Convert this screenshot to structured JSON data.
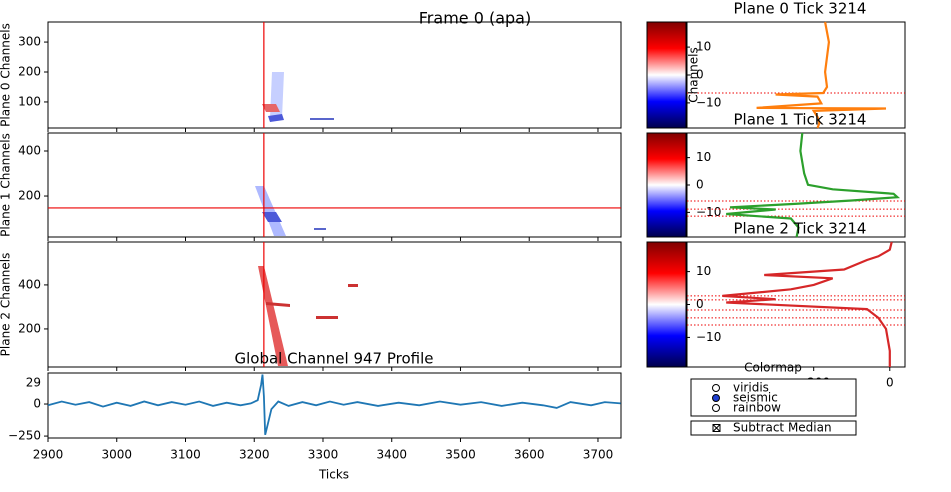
{
  "title": "Frame 0 (apa)",
  "time_axis": {
    "xlim": [
      2900,
      3733.5
    ],
    "xticks": [
      2900,
      3000,
      3100,
      3200,
      3300,
      3400,
      3500,
      3600,
      3700
    ],
    "xlabel": "Ticks",
    "cursor_tick": 3214
  },
  "colorbar": {
    "lim": [
      -19,
      19
    ],
    "ticks": [
      {
        "value": -10,
        "label": "−10"
      },
      0,
      10
    ]
  },
  "right_ylabel": "Channels",
  "right_xaxis": {
    "xlim": [
      -533,
      40
    ],
    "xticks": [
      {
        "value": -200,
        "label": "−200"
      },
      0
    ]
  },
  "planes": [
    {
      "ylabel": "Plane 0 Channels",
      "ylim": [
        13,
        367
      ],
      "yticks": [
        100,
        200,
        300
      ],
      "profile_title": "Plane 0 Tick 3214",
      "color": "#ff7f0e",
      "trace": {
        "channels": [
          367,
          300,
          250,
          200,
          150,
          130,
          125,
          118,
          95,
          80,
          78,
          70,
          50,
          30,
          13
        ],
        "values": [
          -170,
          -160,
          -165,
          -170,
          -165,
          -175,
          -300,
          -190,
          -180,
          -350,
          -10,
          -200,
          -190,
          -185,
          -190
        ]
      },
      "marker_channels": [
        130
      ]
    },
    {
      "ylabel": "Plane 1 Channels",
      "ylim": [
        18,
        480
      ],
      "yticks": [
        200,
        400
      ],
      "profile_title": "Plane 1 Tick 3214",
      "color": "#2ca02c",
      "trace": {
        "channels": [
          480,
          400,
          300,
          250,
          230,
          210,
          195,
          180,
          165,
          150,
          140,
          120,
          100,
          60,
          18
        ],
        "values": [
          -230,
          -235,
          -225,
          -215,
          -150,
          10,
          20,
          -100,
          -250,
          -420,
          -300,
          -430,
          -260,
          -240,
          -245
        ]
      },
      "marker_channels": [
        178,
        142,
        111
      ]
    },
    {
      "ylabel": "Plane 2 Channels",
      "ylim": [
        27,
        595
      ],
      "yticks": [
        200,
        400
      ],
      "profile_title": "Plane 2 Tick 3214",
      "color": "#d62728",
      "trace": {
        "channels": [
          595,
          560,
          530,
          513,
          470,
          445,
          430,
          400,
          380,
          350,
          335,
          320,
          290,
          250,
          200,
          100,
          27
        ],
        "values": [
          5,
          0,
          -30,
          -60,
          -120,
          -330,
          -150,
          -200,
          -260,
          -440,
          -300,
          -430,
          -60,
          -30,
          -10,
          0,
          0
        ]
      },
      "marker_channels": [
        350,
        332,
        286,
        250,
        218
      ]
    }
  ],
  "crosshair": {
    "plane": 1,
    "channel": 147
  },
  "profile": {
    "title": "Global Channel 947 Profile",
    "ylim": [
      -265,
      242
    ],
    "yticks": [
      {
        "value": -250,
        "label": "−250"
      },
      0
    ],
    "clipped_label": "29",
    "color": "#1f77b4",
    "x": [
      2900,
      2920,
      2940,
      2960,
      2980,
      3000,
      3020,
      3040,
      3060,
      3080,
      3100,
      3120,
      3140,
      3160,
      3180,
      3195,
      3205,
      3210,
      3212,
      3214,
      3216,
      3220,
      3225,
      3235,
      3250,
      3270,
      3290,
      3310,
      3330,
      3350,
      3380,
      3410,
      3440,
      3470,
      3500,
      3530,
      3560,
      3590,
      3620,
      3640,
      3660,
      3690,
      3710,
      3733
    ],
    "values": [
      -10,
      20,
      -5,
      15,
      -20,
      10,
      -15,
      20,
      -10,
      15,
      -5,
      20,
      -15,
      10,
      -10,
      5,
      30,
      150,
      230,
      60,
      -240,
      -150,
      -40,
      20,
      -15,
      15,
      -10,
      20,
      -5,
      15,
      -15,
      10,
      -10,
      20,
      -5,
      15,
      -15,
      10,
      -10,
      -30,
      15,
      -10,
      15,
      5
    ]
  },
  "widgets": {
    "radio": {
      "title": "Colormap",
      "options": [
        "viridis",
        "seismic",
        "rainbow"
      ],
      "selected": 1
    },
    "check": {
      "label": "Subtract Median",
      "checked": true
    }
  }
}
